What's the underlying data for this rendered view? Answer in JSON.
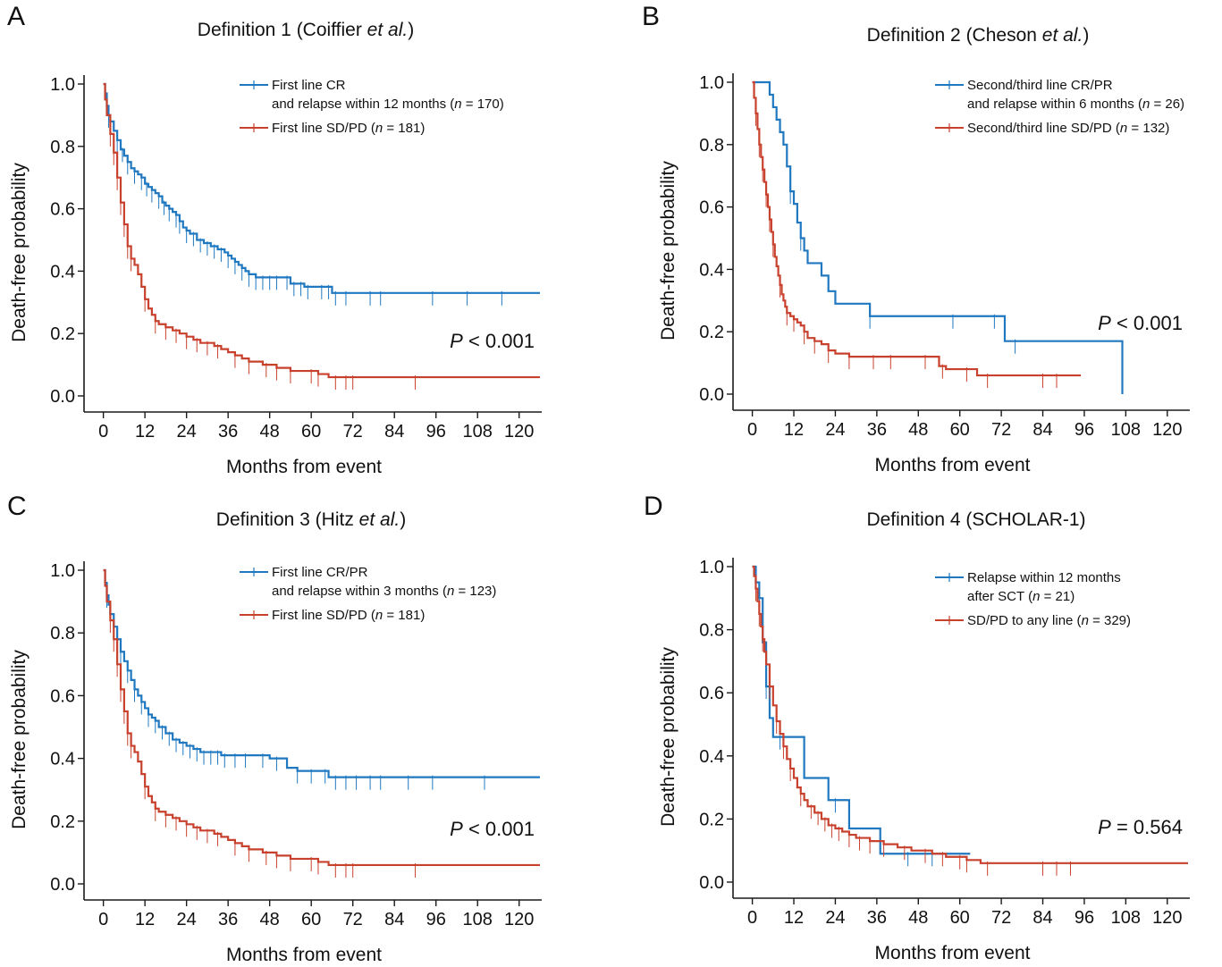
{
  "colors": {
    "blue": "#1f78c0",
    "red": "#c8412d",
    "axis": "#1a1a1a"
  },
  "chart_data": [
    {
      "type": "line",
      "panel": "A",
      "title": {
        "pre": "Definition 1  (Coiffier ",
        "ital": "et al.",
        "post": ")"
      },
      "xlabel": "Months from event",
      "ylabel": "Death-free probability",
      "xlim": [
        -3,
        126
      ],
      "ylim": [
        0,
        1
      ],
      "xticks": [
        0,
        12,
        24,
        36,
        48,
        60,
        72,
        84,
        96,
        108,
        120
      ],
      "yticks": [
        "0.0",
        "0.2",
        "0.4",
        "0.6",
        "0.8",
        "1.0"
      ],
      "legend_position": "top-right",
      "pvalue": {
        "italic": "P",
        "rest": " < 0.001"
      },
      "series": [
        {
          "name": {
            "lines": [
              {
                "text": "First line CR"
              },
              {
                "text": "and relapse within 12 months (",
                "ital": "n",
                "post": " = 170)"
              }
            ]
          },
          "color": "blue",
          "x": [
            0,
            0.5,
            1,
            1.5,
            2,
            3,
            4,
            5,
            6,
            7,
            8,
            9,
            10,
            11,
            12,
            13,
            14,
            15,
            16,
            17,
            18,
            19,
            20,
            21,
            22,
            23,
            24,
            25,
            27,
            29,
            31,
            33,
            35,
            36,
            37,
            38,
            39,
            40,
            41,
            42,
            44,
            48,
            52,
            54,
            58,
            62,
            66,
            70,
            80,
            100,
            126
          ],
          "y": [
            1.0,
            0.97,
            0.93,
            0.9,
            0.88,
            0.85,
            0.82,
            0.79,
            0.77,
            0.75,
            0.73,
            0.72,
            0.71,
            0.7,
            0.68,
            0.67,
            0.66,
            0.65,
            0.64,
            0.62,
            0.61,
            0.6,
            0.59,
            0.58,
            0.56,
            0.54,
            0.53,
            0.52,
            0.5,
            0.49,
            0.48,
            0.47,
            0.46,
            0.45,
            0.44,
            0.43,
            0.42,
            0.41,
            0.4,
            0.39,
            0.38,
            0.38,
            0.38,
            0.36,
            0.35,
            0.35,
            0.33,
            0.33,
            0.33,
            0.33,
            0.33
          ],
          "censor_x": [
            1.5,
            4,
            5.5,
            7,
            9,
            11,
            12.5,
            14,
            16,
            17.5,
            19,
            21,
            22,
            24,
            26,
            28,
            30,
            32,
            34,
            36,
            38,
            40,
            42,
            44,
            46,
            48,
            50,
            53,
            55,
            57,
            59,
            63,
            65,
            67,
            70,
            77,
            80,
            95,
            105,
            115
          ]
        },
        {
          "name": {
            "lines": [
              {
                "text": "First line SD/PD (",
                "ital": "n",
                "post": " = 181)"
              }
            ]
          },
          "color": "red",
          "x": [
            0,
            0.5,
            1,
            2,
            3,
            4,
            5,
            6,
            7,
            8,
            9,
            10,
            11,
            12,
            13,
            14,
            15,
            16,
            18,
            20,
            22,
            24,
            26,
            28,
            30,
            32,
            34,
            36,
            38,
            40,
            42,
            44,
            46,
            48,
            50,
            52,
            54,
            56,
            58,
            60,
            62,
            65,
            80,
            100,
            126
          ],
          "y": [
            1.0,
            0.95,
            0.9,
            0.84,
            0.78,
            0.7,
            0.62,
            0.55,
            0.48,
            0.44,
            0.42,
            0.39,
            0.35,
            0.31,
            0.28,
            0.26,
            0.24,
            0.23,
            0.22,
            0.21,
            0.2,
            0.19,
            0.18,
            0.17,
            0.17,
            0.16,
            0.15,
            0.14,
            0.13,
            0.12,
            0.11,
            0.11,
            0.1,
            0.1,
            0.09,
            0.09,
            0.08,
            0.08,
            0.08,
            0.08,
            0.07,
            0.06,
            0.06,
            0.06,
            0.06
          ],
          "censor_x": [
            2,
            3,
            4,
            5,
            6,
            7,
            8,
            12,
            15,
            18,
            21,
            24,
            27,
            30,
            33,
            38,
            42,
            47,
            50,
            54,
            60,
            62,
            67,
            70,
            72,
            90
          ]
        }
      ]
    },
    {
      "type": "line",
      "panel": "B",
      "title": {
        "pre": "Definition 2 (Cheson ",
        "ital": "et al.",
        "post": ")"
      },
      "xlabel": "Months from event",
      "ylabel": "Death-free probability",
      "xlim": [
        -3,
        126
      ],
      "ylim": [
        0,
        1
      ],
      "xticks": [
        0,
        12,
        24,
        36,
        48,
        60,
        72,
        84,
        96,
        108,
        120
      ],
      "yticks": [
        "0.0",
        "0.2",
        "0.4",
        "0.6",
        "0.8",
        "1.0"
      ],
      "legend_position": "top-right",
      "pvalue": {
        "italic": "P",
        "rest": " < 0.001"
      },
      "series": [
        {
          "name": {
            "lines": [
              {
                "text": "Second/third line CR/PR"
              },
              {
                "text": "and relapse within 6 months (",
                "ital": "n",
                "post": " = 26)"
              }
            ]
          },
          "color": "blue",
          "x": [
            0,
            5,
            6,
            7,
            8,
            9,
            10,
            11,
            12,
            13,
            14,
            15,
            16,
            20,
            22,
            24,
            34,
            73,
            107,
            107
          ],
          "y": [
            1.0,
            0.96,
            0.92,
            0.88,
            0.84,
            0.8,
            0.73,
            0.65,
            0.61,
            0.55,
            0.5,
            0.46,
            0.42,
            0.38,
            0.33,
            0.29,
            0.25,
            0.17,
            0.17,
            0.0
          ],
          "censor_x": [
            11,
            14,
            34,
            58,
            70,
            76
          ]
        },
        {
          "name": {
            "lines": [
              {
                "text": "Second/third line SD/PD (",
                "ital": "n",
                "post": " = 132)"
              }
            ]
          },
          "color": "red",
          "x": [
            0,
            0.5,
            1,
            1.5,
            2,
            2.5,
            3,
            3.5,
            4,
            4.5,
            5,
            5.5,
            6,
            6.5,
            7,
            7.5,
            8,
            8.5,
            9,
            9.5,
            10,
            11,
            12,
            13,
            14,
            15,
            16,
            18,
            20,
            22,
            24,
            28,
            36,
            48,
            54,
            56,
            65,
            80,
            95
          ],
          "y": [
            1.0,
            0.95,
            0.9,
            0.85,
            0.8,
            0.76,
            0.72,
            0.68,
            0.64,
            0.6,
            0.56,
            0.52,
            0.48,
            0.44,
            0.41,
            0.38,
            0.35,
            0.32,
            0.3,
            0.28,
            0.26,
            0.25,
            0.24,
            0.23,
            0.22,
            0.2,
            0.18,
            0.17,
            0.16,
            0.14,
            0.13,
            0.12,
            0.12,
            0.12,
            0.09,
            0.08,
            0.06,
            0.06,
            0.06
          ],
          "censor_x": [
            1,
            2,
            3,
            4,
            5,
            6,
            8,
            10,
            12,
            15,
            18,
            22,
            28,
            35,
            40,
            50,
            55,
            62,
            68,
            84,
            88
          ]
        }
      ]
    },
    {
      "type": "line",
      "panel": "C",
      "title": {
        "pre": "Definition 3 (Hitz ",
        "ital": "et al.",
        "post": ")"
      },
      "xlabel": "Months from event",
      "ylabel": "Death-free probability",
      "xlim": [
        -3,
        126
      ],
      "ylim": [
        0,
        1
      ],
      "xticks": [
        0,
        12,
        24,
        36,
        48,
        60,
        72,
        84,
        96,
        108,
        120
      ],
      "yticks": [
        "0.0",
        "0.2",
        "0.4",
        "0.6",
        "0.8",
        "1.0"
      ],
      "legend_position": "top-right",
      "pvalue": {
        "italic": "P",
        "rest": " < 0.001"
      },
      "series": [
        {
          "name": {
            "lines": [
              {
                "text": "First line CR/PR"
              },
              {
                "text": "and relapse within 3 months (",
                "ital": "n",
                "post": " = 123)"
              }
            ]
          },
          "color": "blue",
          "x": [
            0,
            0.5,
            1,
            1.5,
            2,
            3,
            4,
            5,
            6,
            7,
            8,
            9,
            10,
            11,
            12,
            13,
            14,
            15,
            16,
            18,
            20,
            22,
            24,
            26,
            28,
            30,
            34,
            40,
            44,
            48,
            53,
            56,
            65,
            80,
            100,
            126
          ],
          "y": [
            1.0,
            0.96,
            0.92,
            0.89,
            0.86,
            0.82,
            0.78,
            0.74,
            0.71,
            0.68,
            0.65,
            0.62,
            0.6,
            0.58,
            0.56,
            0.54,
            0.53,
            0.52,
            0.5,
            0.48,
            0.46,
            0.45,
            0.44,
            0.43,
            0.42,
            0.42,
            0.41,
            0.41,
            0.41,
            0.4,
            0.37,
            0.36,
            0.34,
            0.34,
            0.34,
            0.34
          ],
          "censor_x": [
            1,
            3,
            5,
            7,
            9,
            11,
            13,
            15,
            17,
            19,
            21,
            23,
            25,
            27,
            29,
            31,
            33,
            35,
            38,
            41,
            46,
            50,
            56,
            60,
            64,
            67,
            70,
            73,
            77,
            80,
            88,
            95,
            110
          ]
        },
        {
          "name": {
            "lines": [
              {
                "text": "First line SD/PD (",
                "ital": "n",
                "post": " = 181)"
              }
            ]
          },
          "color": "red",
          "x": [
            0,
            0.5,
            1,
            2,
            3,
            4,
            5,
            6,
            7,
            8,
            9,
            10,
            11,
            12,
            13,
            14,
            15,
            16,
            18,
            20,
            22,
            24,
            26,
            28,
            30,
            32,
            34,
            36,
            38,
            40,
            42,
            44,
            46,
            48,
            50,
            52,
            54,
            56,
            58,
            60,
            62,
            65,
            80,
            100,
            126
          ],
          "y": [
            1.0,
            0.95,
            0.9,
            0.84,
            0.78,
            0.7,
            0.62,
            0.55,
            0.48,
            0.44,
            0.42,
            0.39,
            0.35,
            0.31,
            0.28,
            0.26,
            0.24,
            0.23,
            0.22,
            0.21,
            0.2,
            0.19,
            0.18,
            0.17,
            0.17,
            0.16,
            0.15,
            0.14,
            0.13,
            0.12,
            0.11,
            0.11,
            0.1,
            0.1,
            0.09,
            0.09,
            0.08,
            0.08,
            0.08,
            0.08,
            0.07,
            0.06,
            0.06,
            0.06,
            0.06
          ],
          "censor_x": [
            2,
            3,
            4,
            5,
            6,
            7,
            8,
            12,
            15,
            18,
            21,
            24,
            27,
            30,
            33,
            38,
            42,
            47,
            50,
            54,
            60,
            62,
            67,
            70,
            72,
            90
          ]
        }
      ]
    },
    {
      "type": "line",
      "panel": "D",
      "title": {
        "pre": "Definition 4 (SCHOLAR-1)"
      },
      "xlabel": "Months from event",
      "ylabel": "Death-free probability",
      "xlim": [
        -3,
        126
      ],
      "ylim": [
        0,
        1
      ],
      "xticks": [
        0,
        12,
        24,
        36,
        48,
        60,
        72,
        84,
        96,
        108,
        120
      ],
      "yticks": [
        "0.0",
        "0.2",
        "0.4",
        "0.6",
        "0.8",
        "1.0"
      ],
      "legend_position": "top-right",
      "pvalue": {
        "italic": "P",
        "rest": " = 0.564"
      },
      "series": [
        {
          "name": {
            "lines": [
              {
                "text": "Relapse within 12 months"
              },
              {
                "text": "after SCT (",
                "ital": "n",
                "post": " = 21)"
              }
            ]
          },
          "color": "blue",
          "x": [
            0,
            1,
            2,
            3,
            4,
            5,
            6,
            8,
            15,
            22,
            28,
            37,
            63
          ],
          "y": [
            1.0,
            0.95,
            0.9,
            0.76,
            0.62,
            0.52,
            0.46,
            0.46,
            0.33,
            0.26,
            0.17,
            0.09,
            0.09
          ],
          "censor_x": [
            2,
            4,
            8,
            24,
            45,
            52
          ]
        },
        {
          "name": {
            "lines": [
              {
                "text": "SD/PD to any line (",
                "ital": "n",
                "post": " = 329)"
              }
            ]
          },
          "color": "red",
          "x": [
            0,
            0.5,
            1,
            1.5,
            2,
            2.5,
            3,
            3.5,
            4,
            5,
            6,
            7,
            8,
            9,
            10,
            11,
            12,
            13,
            14,
            15,
            16,
            18,
            20,
            22,
            24,
            26,
            28,
            30,
            32,
            34,
            36,
            38,
            40,
            42,
            44,
            46,
            48,
            50,
            52,
            54,
            56,
            60,
            62,
            66,
            80,
            100,
            126
          ],
          "y": [
            1.0,
            0.97,
            0.93,
            0.89,
            0.85,
            0.81,
            0.77,
            0.73,
            0.69,
            0.62,
            0.56,
            0.51,
            0.47,
            0.43,
            0.39,
            0.36,
            0.33,
            0.3,
            0.28,
            0.26,
            0.24,
            0.22,
            0.2,
            0.18,
            0.17,
            0.16,
            0.15,
            0.14,
            0.14,
            0.13,
            0.13,
            0.12,
            0.12,
            0.11,
            0.11,
            0.1,
            0.1,
            0.1,
            0.09,
            0.09,
            0.08,
            0.08,
            0.07,
            0.06,
            0.06,
            0.06,
            0.06
          ],
          "censor_x": [
            1,
            2,
            3,
            5,
            7,
            9,
            11,
            14,
            17,
            19,
            21,
            23,
            25,
            28,
            31,
            34,
            38,
            44,
            50,
            55,
            60,
            62,
            68,
            84,
            88,
            92
          ]
        }
      ]
    }
  ]
}
